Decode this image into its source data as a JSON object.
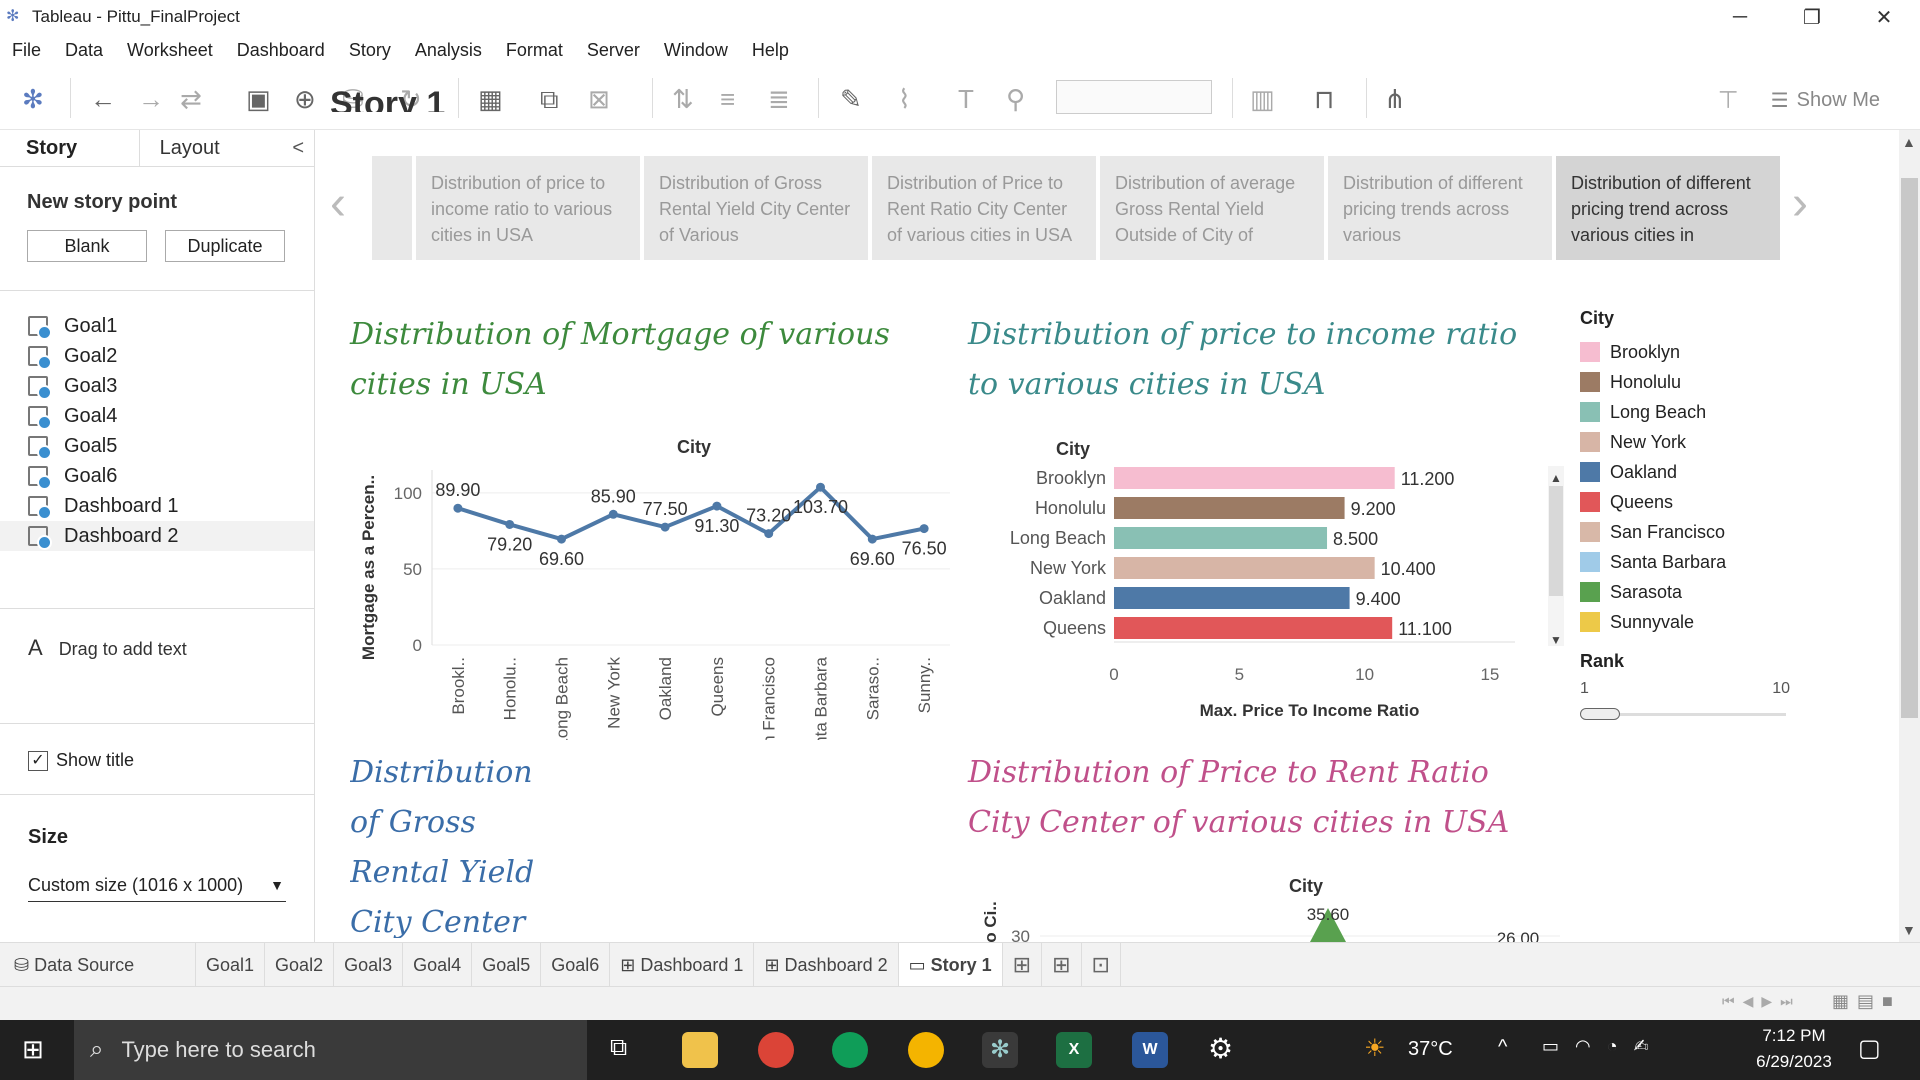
{
  "window": {
    "title": "Tableau - Pittu_FinalProject"
  },
  "menu": [
    "File",
    "Data",
    "Worksheet",
    "Dashboard",
    "Story",
    "Analysis",
    "Format",
    "Server",
    "Window",
    "Help"
  ],
  "toolbar": {
    "show_me": "Show Me"
  },
  "left_panel": {
    "tabs": [
      "Story",
      "Layout"
    ],
    "new_story_point": "New story point",
    "blank": "Blank",
    "duplicate": "Duplicate",
    "sheets": [
      "Goal1",
      "Goal2",
      "Goal3",
      "Goal4",
      "Goal5",
      "Goal6",
      "Dashboard 1",
      "Dashboard 2"
    ],
    "drag_text": "Drag to add text",
    "show_title": "Show title",
    "size_label": "Size",
    "size_value": "Custom size (1016 x 1000)"
  },
  "story": {
    "title": "Story 1",
    "points": [
      "Distribution of  price to income ratio to various cities in USA",
      "Distribution of Gross Rental Yield City Center of Various",
      "Distribution of Price to Rent Ratio City Center of various cities in USA",
      "Distribution of average Gross Rental Yield Outside of City of",
      "Distribution of different pricing trends across various",
      "Distribution of different pricing trend across various cities in"
    ]
  },
  "titles": {
    "mortgage": "Distribution of Mortgage of various cities in USA",
    "pti": "Distribution of price to income ratio to various cities in USA",
    "gross": "Distribution of Gross Rental Yield City Center",
    "ptr": "Distribution of Price to Rent Ratio City Center of various cities in USA"
  },
  "legend": {
    "title": "City",
    "items": [
      {
        "name": "Brooklyn",
        "color": "#f6bdd0"
      },
      {
        "name": "Honolulu",
        "color": "#9c7b64"
      },
      {
        "name": "Long Beach",
        "color": "#89c0b4"
      },
      {
        "name": "New York",
        "color": "#d7b5a6"
      },
      {
        "name": "Oakland",
        "color": "#4e79a7"
      },
      {
        "name": "Queens",
        "color": "#e15759"
      },
      {
        "name": "San Francisco",
        "color": "#d8b8a8"
      },
      {
        "name": "Santa Barbara",
        "color": "#a0cbe8"
      },
      {
        "name": "Sarasota",
        "color": "#59a14f"
      },
      {
        "name": "Sunnyvale",
        "color": "#edc948"
      }
    ],
    "rank_label": "Rank",
    "rank_min": "1",
    "rank_max": "10"
  },
  "chart_data": [
    {
      "type": "line",
      "header": "City",
      "ylabel": "Mortgage as a Percen..",
      "categories": [
        "Brookl..",
        "Honolu..",
        "Long Beach",
        "New York",
        "Oakland",
        "Queens",
        "San Francisco",
        "Santa Barbara",
        "Saraso..",
        "Sunny.."
      ],
      "values": [
        89.9,
        79.2,
        69.6,
        85.9,
        77.5,
        91.3,
        73.2,
        103.7,
        69.6,
        76.5
      ],
      "value_labels": [
        "89.90",
        "79.20",
        "69.60",
        "85.90",
        "77.50",
        "91.30",
        "73.20",
        "103.70",
        "69.60",
        "76.50"
      ],
      "yticks": [
        "0",
        "50",
        "100"
      ],
      "ylim": [
        0,
        115
      ],
      "color": "#4e79a7"
    },
    {
      "type": "bar",
      "orientation": "horizontal",
      "header": "City",
      "xlabel": "Max. Price To Income Ratio",
      "categories": [
        "Brooklyn",
        "Honolulu",
        "Long Beach",
        "New York",
        "Oakland",
        "Queens"
      ],
      "values": [
        11.2,
        9.2,
        8.5,
        10.4,
        9.4,
        11.1
      ],
      "value_labels": [
        "11.200",
        "9.200",
        "8.500",
        "10.400",
        "9.400",
        "11.100"
      ],
      "xticks": [
        "0",
        "5",
        "10",
        "15"
      ],
      "xlim": [
        0,
        16
      ]
    },
    {
      "type": "scatter",
      "header": "City",
      "ylabel": "o Ci..",
      "yticks": [
        "30"
      ],
      "value_labels": [
        "35.60",
        "26.00"
      ]
    }
  ],
  "sheet_tabs": [
    "Data Source",
    "Goal1",
    "Goal2",
    "Goal3",
    "Goal4",
    "Goal5",
    "Goal6",
    "Dashboard 1",
    "Dashboard 2",
    "Story 1"
  ],
  "taskbar": {
    "search": "Type here to search",
    "weather": "37°C",
    "time": "7:12 PM",
    "date": "6/29/2023"
  }
}
